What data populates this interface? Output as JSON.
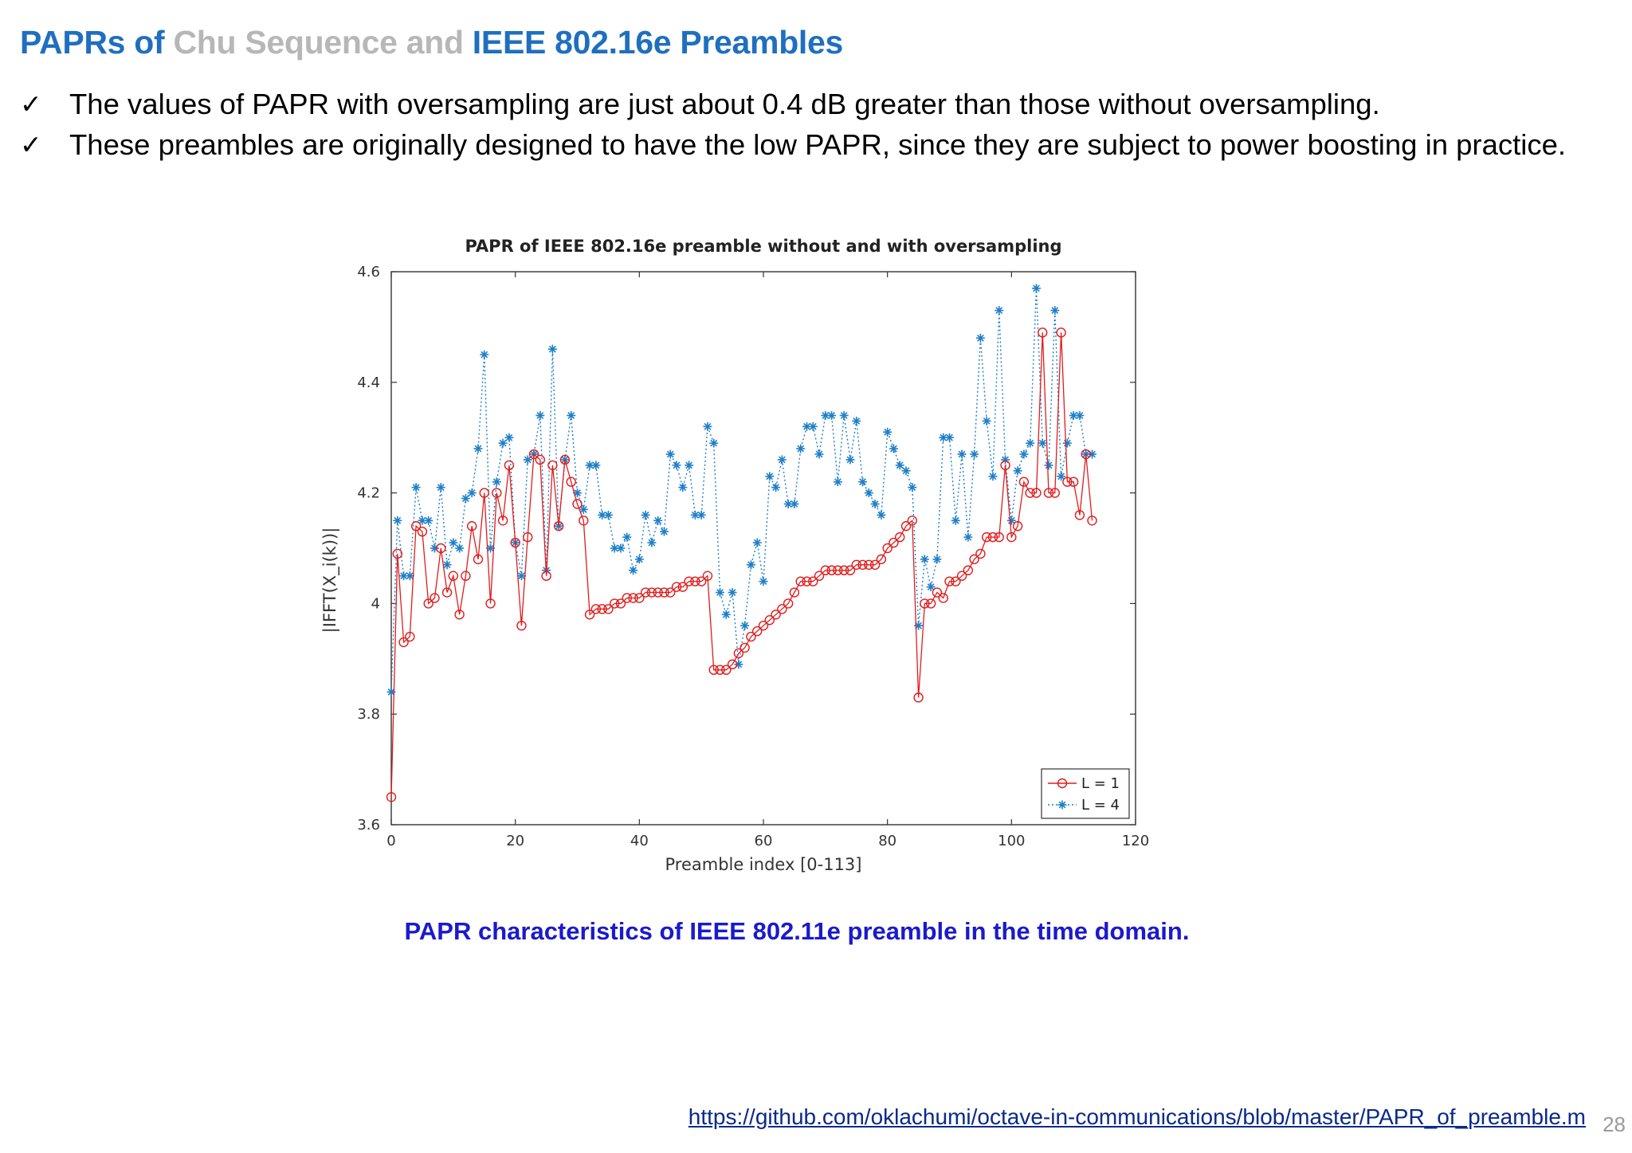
{
  "slide": {
    "title_parts": [
      "PAPRs of",
      " Chu Sequence and",
      " IEEE 802.16e Preambles"
    ],
    "bullets": [
      "The values of PAPR with oversampling are just about 0.4 dB greater than those without oversampling.",
      "These preambles are originally designed to have the low PAPR, since they are subject to power boosting in practice."
    ],
    "bullet_icon": "check-icon",
    "caption": "PAPR characteristics of IEEE 802.11e preamble in the time domain.",
    "link": "https://github.com/oklachumi/octave-in-communications/blob/master/PAPR_of_preamble.m",
    "page_number": "28",
    "colors": {
      "title_blue": "#1f6fbf",
      "title_gray": "#b7b7b7",
      "caption_blue": "#1a1acc"
    }
  },
  "chart_data": {
    "type": "line",
    "title": "PAPR of IEEE 802.16e preamble without and with oversampling",
    "xlabel": "Preamble index [0-113]",
    "ylabel": "|IFFT(X_i(k))|",
    "xlim": [
      0,
      120
    ],
    "ylim": [
      3.6,
      4.6
    ],
    "xticks": [
      0,
      20,
      40,
      60,
      80,
      100,
      120
    ],
    "yticks": [
      3.6,
      3.8,
      4,
      4.2,
      4.4,
      4.6
    ],
    "ytick_labels": [
      "3.6",
      "3.8",
      "4",
      "4.2",
      "4.4",
      "4.6"
    ],
    "legend_position": "bottom-right",
    "grid": false,
    "series": [
      {
        "name": "L = 1",
        "color": "#e01c1c",
        "marker": "circle",
        "line": "solid",
        "x": [
          0,
          1,
          2,
          3,
          4,
          5,
          6,
          7,
          8,
          9,
          10,
          11,
          12,
          13,
          14,
          15,
          16,
          17,
          18,
          19,
          20,
          21,
          22,
          23,
          24,
          25,
          26,
          27,
          28,
          29,
          30,
          31,
          32,
          33,
          34,
          35,
          36,
          37,
          38,
          39,
          40,
          41,
          42,
          43,
          44,
          45,
          46,
          47,
          48,
          49,
          50,
          51,
          52,
          53,
          54,
          55,
          56,
          57,
          58,
          59,
          60,
          61,
          62,
          63,
          64,
          65,
          66,
          67,
          68,
          69,
          70,
          71,
          72,
          73,
          74,
          75,
          76,
          77,
          78,
          79,
          80,
          81,
          82,
          83,
          84,
          85,
          86,
          87,
          88,
          89,
          90,
          91,
          92,
          93,
          94,
          95,
          96,
          97,
          98,
          99,
          100,
          101,
          102,
          103,
          104,
          105,
          106,
          107,
          108,
          109,
          110,
          111,
          112,
          113
        ],
        "y": [
          3.65,
          4.09,
          3.93,
          3.94,
          4.14,
          4.13,
          4.0,
          4.01,
          4.1,
          4.02,
          4.05,
          3.98,
          4.05,
          4.14,
          4.08,
          4.2,
          4.0,
          4.2,
          4.15,
          4.25,
          4.11,
          3.96,
          4.12,
          4.27,
          4.26,
          4.05,
          4.25,
          4.14,
          4.26,
          4.22,
          4.18,
          4.15,
          3.98,
          3.99,
          3.99,
          3.99,
          4.0,
          4.0,
          4.01,
          4.01,
          4.01,
          4.02,
          4.02,
          4.02,
          4.02,
          4.02,
          4.03,
          4.03,
          4.04,
          4.04,
          4.04,
          4.05,
          3.88,
          3.88,
          3.88,
          3.89,
          3.91,
          3.92,
          3.94,
          3.95,
          3.96,
          3.97,
          3.98,
          3.99,
          4.0,
          4.02,
          4.04,
          4.04,
          4.04,
          4.05,
          4.06,
          4.06,
          4.06,
          4.06,
          4.06,
          4.07,
          4.07,
          4.07,
          4.07,
          4.08,
          4.1,
          4.11,
          4.12,
          4.14,
          4.15,
          3.83,
          4.0,
          4.0,
          4.02,
          4.01,
          4.04,
          4.04,
          4.05,
          4.06,
          4.08,
          4.09,
          4.12,
          4.12,
          4.12,
          4.25,
          4.12,
          4.14,
          4.22,
          4.2,
          4.2,
          4.49,
          4.2,
          4.2,
          4.49,
          4.22,
          4.22,
          4.16,
          4.27,
          4.15
        ]
      },
      {
        "name": "L = 4",
        "color": "#1e7fc8",
        "marker": "star",
        "line": "dotted",
        "x": [
          0,
          1,
          2,
          3,
          4,
          5,
          6,
          7,
          8,
          9,
          10,
          11,
          12,
          13,
          14,
          15,
          16,
          17,
          18,
          19,
          20,
          21,
          22,
          23,
          24,
          25,
          26,
          27,
          28,
          29,
          30,
          31,
          32,
          33,
          34,
          35,
          36,
          37,
          38,
          39,
          40,
          41,
          42,
          43,
          44,
          45,
          46,
          47,
          48,
          49,
          50,
          51,
          52,
          53,
          54,
          55,
          56,
          57,
          58,
          59,
          60,
          61,
          62,
          63,
          64,
          65,
          66,
          67,
          68,
          69,
          70,
          71,
          72,
          73,
          74,
          75,
          76,
          77,
          78,
          79,
          80,
          81,
          82,
          83,
          84,
          85,
          86,
          87,
          88,
          89,
          90,
          91,
          92,
          93,
          94,
          95,
          96,
          97,
          98,
          99,
          100,
          101,
          102,
          103,
          104,
          105,
          106,
          107,
          108,
          109,
          110,
          111,
          112,
          113
        ],
        "y": [
          3.84,
          4.15,
          4.05,
          4.05,
          4.21,
          4.15,
          4.15,
          4.1,
          4.21,
          4.07,
          4.11,
          4.1,
          4.19,
          4.2,
          4.28,
          4.45,
          4.1,
          4.22,
          4.29,
          4.3,
          4.11,
          4.05,
          4.26,
          4.27,
          4.34,
          4.06,
          4.46,
          4.14,
          4.26,
          4.34,
          4.2,
          4.17,
          4.25,
          4.25,
          4.16,
          4.16,
          4.1,
          4.1,
          4.12,
          4.06,
          4.08,
          4.16,
          4.11,
          4.15,
          4.13,
          4.27,
          4.25,
          4.21,
          4.25,
          4.16,
          4.16,
          4.32,
          4.29,
          4.02,
          3.98,
          4.02,
          3.89,
          3.96,
          4.07,
          4.11,
          4.04,
          4.23,
          4.21,
          4.26,
          4.18,
          4.18,
          4.28,
          4.32,
          4.32,
          4.27,
          4.34,
          4.34,
          4.22,
          4.34,
          4.26,
          4.33,
          4.22,
          4.2,
          4.18,
          4.16,
          4.31,
          4.28,
          4.25,
          4.24,
          4.21,
          3.96,
          4.08,
          4.03,
          4.08,
          4.3,
          4.3,
          4.15,
          4.27,
          4.12,
          4.27,
          4.48,
          4.33,
          4.23,
          4.53,
          4.26,
          4.15,
          4.24,
          4.27,
          4.29,
          4.57,
          4.29,
          4.25,
          4.53,
          4.23,
          4.29,
          4.34,
          4.34,
          4.27,
          4.27
        ]
      }
    ]
  }
}
